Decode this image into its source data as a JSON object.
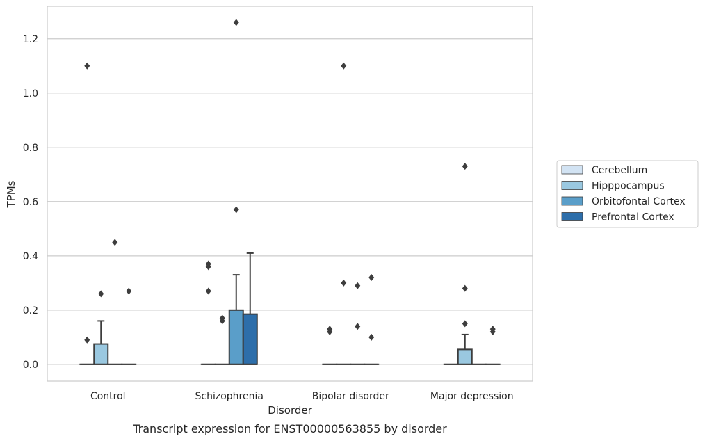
{
  "chart_data": {
    "type": "box",
    "title": "",
    "caption": "Transcript expression for ENST00000563855 by disorder",
    "xlabel": "Disorder",
    "ylabel": "TPMs",
    "ylim": [
      -0.062,
      1.32
    ],
    "yticks": [
      0.0,
      0.2,
      0.4,
      0.6,
      0.8,
      1.0,
      1.2
    ],
    "ytick_labels": [
      "0.0",
      "0.2",
      "0.4",
      "0.6",
      "0.8",
      "1.0",
      "1.2"
    ],
    "grid": "horizontal",
    "legend_position": "right",
    "categories": [
      "Control",
      "Schizophrenia",
      "Bipolar disorder",
      "Major depression"
    ],
    "series": [
      {
        "name": "Cerebellum",
        "color": "#d2e3f3",
        "boxes": [
          {
            "q1": 0,
            "median": 0,
            "q3": 0,
            "whisker_low": 0,
            "whisker_high": 0,
            "outliers": [
              0.09,
              1.1
            ]
          },
          {
            "q1": 0,
            "median": 0,
            "q3": 0,
            "whisker_low": 0,
            "whisker_high": 0,
            "outliers": [
              0.27,
              0.36,
              0.37
            ]
          },
          {
            "q1": 0,
            "median": 0,
            "q3": 0,
            "whisker_low": 0,
            "whisker_high": 0,
            "outliers": [
              0.12,
              0.13
            ]
          },
          {
            "q1": 0,
            "median": 0,
            "q3": 0,
            "whisker_low": 0,
            "whisker_high": 0,
            "outliers": []
          }
        ]
      },
      {
        "name": "Hipppocampus",
        "color": "#9ac8e0",
        "boxes": [
          {
            "q1": 0,
            "median": 0,
            "q3": 0.075,
            "whisker_low": 0,
            "whisker_high": 0.16,
            "outliers": [
              0.26
            ]
          },
          {
            "q1": 0,
            "median": 0,
            "q3": 0,
            "whisker_low": 0,
            "whisker_high": 0,
            "outliers": [
              0.16,
              0.17
            ]
          },
          {
            "q1": 0,
            "median": 0,
            "q3": 0,
            "whisker_low": 0,
            "whisker_high": 0,
            "outliers": [
              0.3,
              1.1
            ]
          },
          {
            "q1": 0,
            "median": 0,
            "q3": 0.055,
            "whisker_low": 0,
            "whisker_high": 0.11,
            "outliers": [
              0.15,
              0.28,
              0.73
            ]
          }
        ]
      },
      {
        "name": "Orbitofontal Cortex",
        "color": "#5a9ec9",
        "boxes": [
          {
            "q1": 0,
            "median": 0,
            "q3": 0,
            "whisker_low": 0,
            "whisker_high": 0,
            "outliers": [
              0.45
            ]
          },
          {
            "q1": 0,
            "median": 0,
            "q3": 0.2,
            "whisker_low": 0,
            "whisker_high": 0.33,
            "outliers": [
              0.57,
              1.26
            ]
          },
          {
            "q1": 0,
            "median": 0,
            "q3": 0,
            "whisker_low": 0,
            "whisker_high": 0,
            "outliers": [
              0.14,
              0.29
            ]
          },
          {
            "q1": 0,
            "median": 0,
            "q3": 0,
            "whisker_low": 0,
            "whisker_high": 0,
            "outliers": []
          }
        ]
      },
      {
        "name": "Prefrontal Cortex",
        "color": "#2d6eaa",
        "boxes": [
          {
            "q1": 0,
            "median": 0,
            "q3": 0,
            "whisker_low": 0,
            "whisker_high": 0,
            "outliers": [
              0.27
            ]
          },
          {
            "q1": 0,
            "median": 0,
            "q3": 0.185,
            "whisker_low": 0,
            "whisker_high": 0.41,
            "outliers": []
          },
          {
            "q1": 0,
            "median": 0,
            "q3": 0,
            "whisker_low": 0,
            "whisker_high": 0,
            "outliers": [
              0.1,
              0.32
            ]
          },
          {
            "q1": 0,
            "median": 0,
            "q3": 0,
            "whisker_low": 0,
            "whisker_high": 0,
            "outliers": [
              0.12,
              0.13
            ]
          }
        ]
      }
    ]
  }
}
